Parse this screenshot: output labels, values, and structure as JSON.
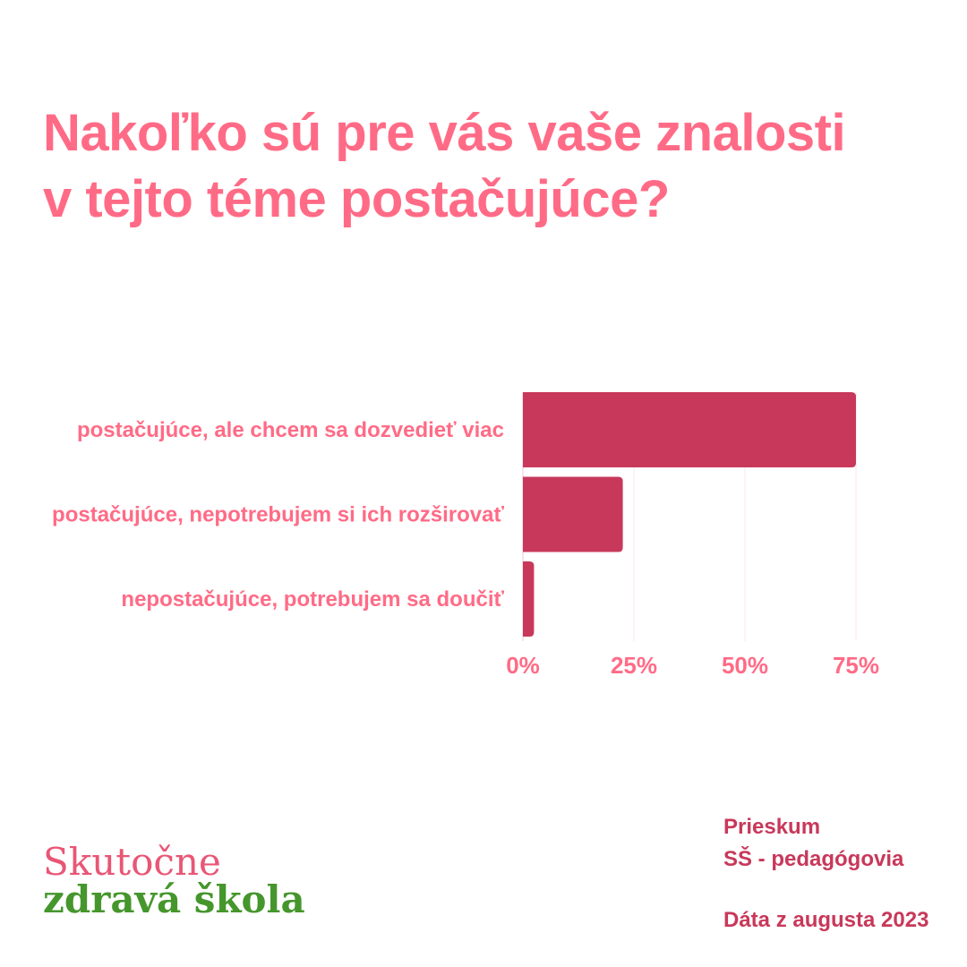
{
  "title": {
    "line1": "Nakoľko sú pre vás vaše znalosti",
    "line2": "v tejto téme postačujúce?"
  },
  "chart_data": {
    "type": "bar",
    "orientation": "horizontal",
    "categories": [
      "postačujúce, ale chcem sa dozvedieť viac",
      "postačujúce, nepotrebujem si ich rozširovať",
      "nepostačujúce, potrebujem sa doučiť"
    ],
    "values": [
      75,
      22.5,
      2.5
    ],
    "unit": "%",
    "xlim": [
      0,
      75
    ],
    "ticks": [
      0,
      25,
      50,
      75
    ],
    "tick_labels": [
      "0%",
      "25%",
      "50%",
      "75%"
    ],
    "grid": "vertical",
    "bar_color": "#c8385a",
    "label_color": "#ff6b86"
  },
  "logo": {
    "line1": "Skutočne",
    "line2": "zdravá škola",
    "color1": "#e95675",
    "color2": "#45962c"
  },
  "survey": {
    "line1": "Prieskum",
    "line2": "SŠ - pedagógovia",
    "date": "Dáta z augusta 2023"
  }
}
